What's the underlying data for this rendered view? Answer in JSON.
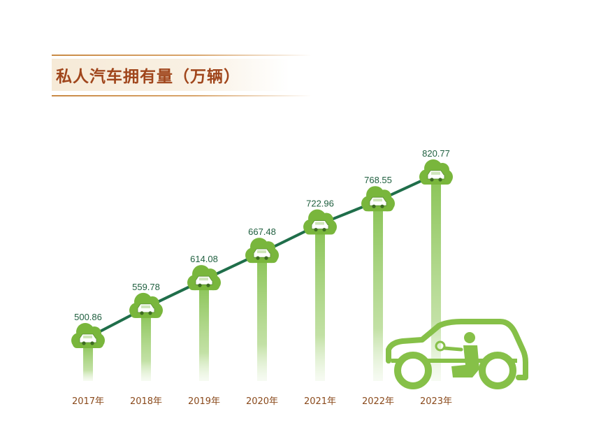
{
  "title": "私人汽车拥有量（万辆）",
  "colors": {
    "title_text": "#a0461c",
    "title_rule": "#c98a45",
    "line": "#1f6e4a",
    "cloud": "#79b63c",
    "bar": "#8cc559",
    "value_label": "#1f5f3f",
    "year_label": "#8a4a1c"
  },
  "chart_data": {
    "type": "line",
    "categories": [
      "2017年",
      "2018年",
      "2019年",
      "2020年",
      "2021年",
      "2022年",
      "2023年"
    ],
    "series": [
      {
        "values": [
          500.86,
          559.78,
          614.08,
          667.48,
          722.96,
          768.55,
          820.77
        ]
      }
    ],
    "value_labels": [
      "500.86",
      "559.78",
      "614.08",
      "667.48",
      "722.96",
      "768.55",
      "820.77"
    ],
    "title": "私人汽车拥有量（万辆）",
    "xlabel": "",
    "ylabel": "",
    "ylim": [
      0,
      900
    ],
    "grid": false,
    "legend": "none",
    "markers": "car-in-cloud-icon",
    "decoration": "car-with-driver-icon"
  }
}
